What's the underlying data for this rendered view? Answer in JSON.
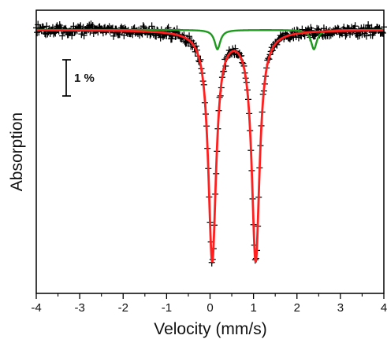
{
  "chart_data": {
    "type": "scatter",
    "title": "",
    "xlabel": "Velocity (mm/s)",
    "ylabel": "Absorption",
    "xlim": [
      -4,
      4
    ],
    "ylim": [
      0,
      100
    ],
    "y_axis": "relative transmission offset; only the 1 % scale bar is printed",
    "x_ticks": [
      -4,
      -3,
      -2,
      -1,
      0,
      1,
      2,
      3,
      4
    ],
    "x_tick_labels": [
      "-4",
      "-3",
      "-2",
      "-1",
      "0",
      "1",
      "2",
      "3",
      "4"
    ],
    "scale_bar": {
      "label": "1 %",
      "value_percent": 1
    },
    "colors": {
      "data": "#000000",
      "red_fit": "#ff1f1f",
      "green_component": "#1d9a1d",
      "axis": "#000000"
    },
    "series": [
      {
        "name": "",
        "kind": "data",
        "marker": "plus",
        "x_start": -4,
        "x_end": 4,
        "point_count": 401
      },
      {
        "name": "",
        "kind": "fit",
        "doublet": {
          "isomer_shift": 0.55,
          "quadrupole_splitting": 1.0,
          "line_positions": [
            0.05,
            1.05
          ],
          "depth_percent": 8.9,
          "linewidth": 0.11
        }
      },
      {
        "name": "",
        "kind": "component",
        "doublet": {
          "isomer_shift": 1.28,
          "quadrupole_splitting": 2.22,
          "line_positions": [
            0.17,
            2.39
          ],
          "depth_percent": 0.75,
          "linewidth": 0.08
        }
      }
    ]
  }
}
